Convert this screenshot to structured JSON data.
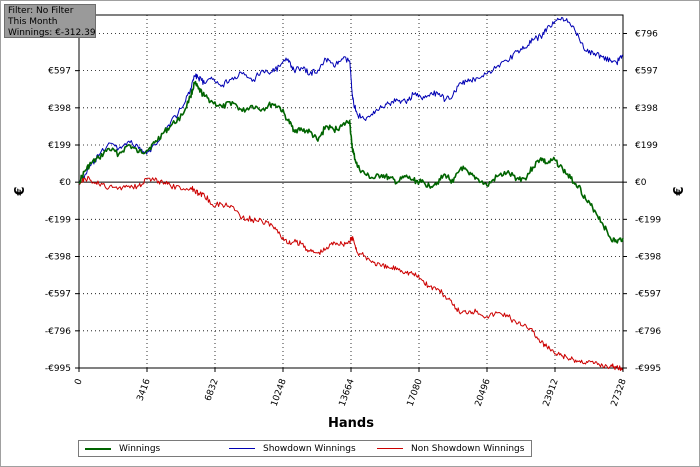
{
  "filter_box": {
    "filter": "Filter: No Filter",
    "period": "This Month",
    "winnings": "Winnings: €-312.39"
  },
  "legend_label_winnings": "Winnings",
  "legend_label_showdown": "Showdown Winnings",
  "legend_label_nonshowdown": "Non Showdown Winnings",
  "colors": {
    "winnings": "#006400",
    "showdown": "#0000b4",
    "nonshowdown": "#cc0000",
    "zero_line": "#000000",
    "grid": "#000000"
  },
  "chart_data": {
    "type": "line",
    "title": "",
    "xlabel": "Hands",
    "ylabel_left": "€",
    "ylabel_right": "€",
    "xlim": [
      0,
      27328
    ],
    "ylim": [
      -995,
      895
    ],
    "grid": true,
    "legend_position": "bottom",
    "x_ticks": [
      {
        "value": 0,
        "label": "0"
      },
      {
        "value": 3416,
        "label": "3416"
      },
      {
        "value": 6832,
        "label": "6832"
      },
      {
        "value": 10248,
        "label": "10248"
      },
      {
        "value": 13664,
        "label": "13664"
      },
      {
        "value": 17080,
        "label": "17080"
      },
      {
        "value": 20496,
        "label": "20496"
      },
      {
        "value": 23912,
        "label": "23912"
      },
      {
        "value": 27328,
        "label": "27328"
      }
    ],
    "y_ticks_left": [
      {
        "value": 597,
        "label": "€597"
      },
      {
        "value": 398,
        "label": "€398"
      },
      {
        "value": 199,
        "label": "€199"
      },
      {
        "value": 0,
        "label": "€0"
      },
      {
        "value": -199,
        "label": "-€199"
      },
      {
        "value": -398,
        "label": "-€398"
      },
      {
        "value": -597,
        "label": "-€597"
      },
      {
        "value": -796,
        "label": "-€796"
      },
      {
        "value": -995,
        "label": "-€995"
      }
    ],
    "y_ticks_right": [
      {
        "value": 796,
        "label": "€796"
      },
      {
        "value": 597,
        "label": "€597"
      },
      {
        "value": 398,
        "label": "€398"
      },
      {
        "value": 199,
        "label": "€199"
      },
      {
        "value": 0,
        "label": "€0"
      },
      {
        "value": -199,
        "label": "-€199"
      },
      {
        "value": -398,
        "label": "-€398"
      },
      {
        "value": -597,
        "label": "-€597"
      },
      {
        "value": -796,
        "label": "-€796"
      },
      {
        "value": -995,
        "label": "-€995"
      }
    ],
    "series": [
      {
        "name": "Winnings",
        "color": "#006400",
        "x": [
          0,
          300,
          600,
          1000,
          1500,
          2000,
          2500,
          3000,
          3400,
          3800,
          4200,
          4600,
          5200,
          5600,
          5800,
          6000,
          6300,
          6700,
          7200,
          7700,
          8200,
          8700,
          9200,
          9700,
          10100,
          10500,
          10800,
          11200,
          11600,
          12000,
          12400,
          12800,
          13200,
          13600,
          13700,
          13800,
          14000,
          14400,
          14800,
          15200,
          15600,
          16000,
          16400,
          16800,
          17200,
          17600,
          18000,
          18400,
          18800,
          19200,
          19600,
          20000,
          20500,
          21000,
          21500,
          22000,
          22400,
          22800,
          23200,
          23500,
          23900,
          24300,
          24700,
          25100,
          25500,
          25900,
          26300,
          26700,
          27000,
          27328
        ],
        "y": [
          0,
          60,
          100,
          130,
          180,
          150,
          200,
          160,
          170,
          210,
          260,
          300,
          360,
          460,
          530,
          500,
          460,
          430,
          400,
          430,
          380,
          410,
          390,
          420,
          400,
          330,
          280,
          280,
          270,
          220,
          300,
          280,
          300,
          330,
          200,
          150,
          80,
          40,
          20,
          40,
          20,
          0,
          30,
          10,
          0,
          -20,
          0,
          40,
          0,
          80,
          40,
          20,
          -20,
          30,
          50,
          20,
          20,
          80,
          130,
          100,
          120,
          70,
          20,
          -20,
          -100,
          -150,
          -220,
          -300,
          -320,
          -300
        ]
      },
      {
        "name": "Showdown Winnings",
        "color": "#0000b4",
        "x": [
          0,
          300,
          600,
          1000,
          1500,
          2000,
          2500,
          3000,
          3400,
          3800,
          4200,
          4600,
          5200,
          5600,
          5800,
          6000,
          6300,
          6700,
          7200,
          7700,
          8200,
          8700,
          9200,
          9700,
          10100,
          10500,
          10800,
          11200,
          11600,
          12000,
          12400,
          12800,
          13200,
          13600,
          13700,
          13800,
          14000,
          14400,
          14800,
          15200,
          15600,
          16000,
          16400,
          16800,
          17200,
          17600,
          18000,
          18400,
          18800,
          19200,
          19600,
          20000,
          20500,
          21000,
          21500,
          22000,
          22400,
          22800,
          23200,
          23500,
          23900,
          24300,
          24700,
          25100,
          25500,
          25900,
          26300,
          26700,
          27000,
          27328
        ],
        "y": [
          0,
          40,
          90,
          140,
          210,
          180,
          220,
          180,
          150,
          200,
          260,
          320,
          400,
          500,
          570,
          560,
          530,
          550,
          520,
          560,
          580,
          540,
          600,
          590,
          620,
          660,
          600,
          610,
          580,
          600,
          660,
          620,
          660,
          650,
          500,
          420,
          360,
          330,
          380,
          400,
          420,
          440,
          430,
          470,
          450,
          460,
          480,
          440,
          470,
          530,
          540,
          560,
          580,
          620,
          650,
          700,
          720,
          760,
          780,
          820,
          860,
          880,
          840,
          780,
          700,
          690,
          670,
          650,
          640,
          680
        ]
      },
      {
        "name": "Non Showdown Winnings",
        "color": "#cc0000",
        "x": [
          0,
          300,
          600,
          1000,
          1500,
          2000,
          2500,
          3000,
          3400,
          3800,
          4200,
          4600,
          5200,
          5600,
          5800,
          6000,
          6300,
          6700,
          7200,
          7700,
          8200,
          8700,
          9200,
          9700,
          10100,
          10500,
          10800,
          11200,
          11600,
          12000,
          12400,
          12800,
          13200,
          13600,
          13700,
          13800,
          14000,
          14400,
          14800,
          15200,
          15600,
          16000,
          16400,
          16800,
          17200,
          17600,
          18000,
          18400,
          18800,
          19200,
          19600,
          20000,
          20500,
          21000,
          21500,
          22000,
          22400,
          22800,
          23200,
          23500,
          23900,
          24300,
          24700,
          25100,
          25500,
          25900,
          26300,
          26700,
          27000,
          27328
        ],
        "y": [
          0,
          20,
          10,
          -10,
          -30,
          -30,
          -20,
          -20,
          20,
          10,
          0,
          -20,
          -40,
          -30,
          -40,
          -60,
          -70,
          -120,
          -120,
          -130,
          -190,
          -200,
          -210,
          -230,
          -280,
          -330,
          -320,
          -330,
          -370,
          -380,
          -360,
          -320,
          -330,
          -320,
          -300,
          -310,
          -380,
          -400,
          -430,
          -450,
          -460,
          -460,
          -480,
          -490,
          -520,
          -560,
          -570,
          -610,
          -660,
          -700,
          -690,
          -690,
          -720,
          -700,
          -710,
          -760,
          -760,
          -800,
          -860,
          -880,
          -920,
          -930,
          -950,
          -960,
          -960,
          -970,
          -980,
          -985,
          -990,
          -995
        ]
      }
    ]
  }
}
